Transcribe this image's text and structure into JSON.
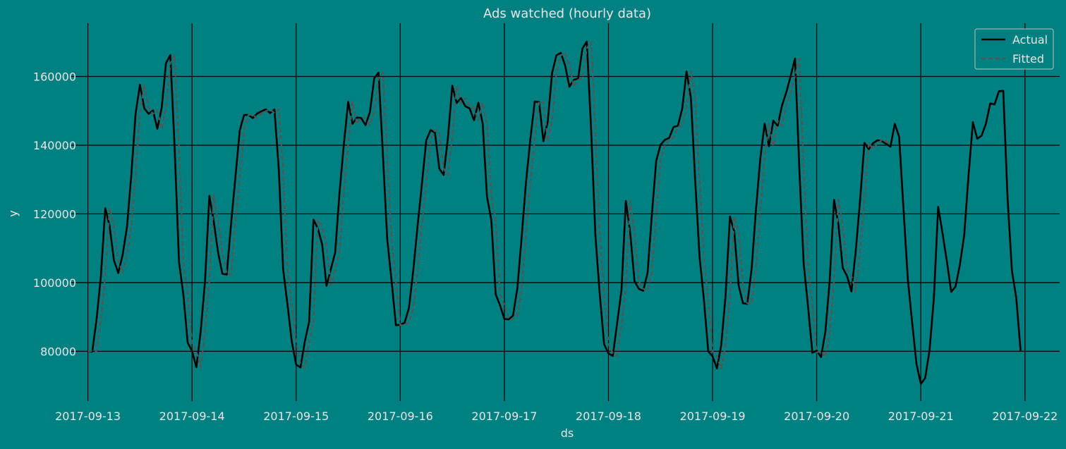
{
  "colors": {
    "background": "#008080",
    "grid": "#000000",
    "text": "#e6e6e6",
    "actual_line": "#000000",
    "fitted_line": "#555555",
    "legend_border": "#b8c4c4"
  },
  "chart_data": {
    "type": "line",
    "title": "Ads watched (hourly data)",
    "xlabel": "ds",
    "ylabel": "y",
    "x_start": "2017-09-13 00:00",
    "x_step": "1 hour",
    "xlim": [
      "2017-09-12 20:00",
      "2017-09-22 08:00"
    ],
    "ylim": [
      65500,
      175500
    ],
    "xticks": [
      "2017-09-13",
      "2017-09-14",
      "2017-09-15",
      "2017-09-16",
      "2017-09-17",
      "2017-09-18",
      "2017-09-19",
      "2017-09-20",
      "2017-09-21",
      "2017-09-22"
    ],
    "yticks": [
      80000,
      100000,
      120000,
      140000,
      160000
    ],
    "grid": true,
    "legend_position": "top-right",
    "series": [
      {
        "name": "Actual",
        "style": "solid",
        "values": [
          80115,
          79885,
          89325,
          101930,
          121630,
          116475,
          106495,
          102795,
          108035,
          116115,
          131235,
          149285,
          157590,
          150715,
          149135,
          150135,
          144780,
          150820,
          163880,
          166235,
          139045,
          105990,
          96600,
          82490,
          80125,
          75370,
          85790,
          100425,
          125235,
          117895,
          108840,
          102570,
          102330,
          117135,
          130640,
          144275,
          148795,
          148840,
          147895,
          149180,
          149890,
          150435,
          149355,
          150405,
          133095,
          103970,
          93635,
          82795,
          76130,
          75280,
          82815,
          88640,
          118320,
          115730,
          111110,
          99065,
          103915,
          108720,
          126165,
          140225,
          152610,
          146240,
          148065,
          147880,
          145870,
          149590,
          159465,
          161110,
          137325,
          112595,
          100570,
          87570,
          87695,
          88325,
          92595,
          103480,
          116590,
          128775,
          141430,
          144400,
          143625,
          133175,
          131340,
          142290,
          157290,
          152300,
          153710,
          151330,
          150715,
          147305,
          152360,
          146310,
          124975,
          118150,
          96565,
          93395,
          89420,
          89295,
          90390,
          98370,
          113510,
          129435,
          141880,
          152710,
          152550,
          141165,
          146895,
          161010,
          166175,
          166880,
          163240,
          157015,
          159040,
          159405,
          168155,
          170145,
          144540,
          113465,
          96395,
          82040,
          79380,
          78645,
          88185,
          97840,
          123785,
          114585,
          100415,
          98175,
          97630,
          102730,
          119760,
          135425,
          140115,
          141560,
          142135,
          145315,
          145640,
          150645,
          161475,
          153745,
          129515,
          107455,
          94980,
          79965,
          78530,
          75030,
          81910,
          96360,
          119245,
          114790,
          99200,
          93980,
          93810,
          104045,
          121280,
          136230,
          146285,
          139700,
          147115,
          145655,
          151545,
          155455,
          160175,
          165210,
          133000,
          105460,
          93040,
          79580,
          80210,
          78315,
          85730,
          100765,
          124080,
          116955,
          104280,
          101895,
          97405,
          109245,
          124045,
          140655,
          138840,
          140580,
          141435,
          141165,
          140380,
          139585,
          146250,
          142435,
          121515,
          100995,
          88355,
          76320,
          70520,
          72190,
          80235,
          95320,
          122030,
          114375,
          106255,
          97300,
          98845,
          105140,
          113840,
          131195,
          146705,
          141875,
          142755,
          146220,
          152170,
          151875,
          155705,
          155840,
          124340,
          103440,
          95500,
          80125
        ]
      },
      {
        "name": "Fitted",
        "style": "dashed",
        "values": [
          80115,
          80115,
          79885,
          89325,
          101930,
          121630,
          116475,
          106495,
          102795,
          108035,
          116115,
          131235,
          149285,
          157590,
          150715,
          149135,
          150135,
          144780,
          150820,
          163880,
          166235,
          139045,
          105990,
          96600,
          82490,
          80125,
          75370,
          85790,
          100425,
          125235,
          117895,
          108840,
          102570,
          102330,
          117135,
          130640,
          144275,
          148795,
          148840,
          147895,
          149180,
          149890,
          150435,
          149355,
          150405,
          133095,
          103970,
          93635,
          82795,
          76130,
          75280,
          82815,
          88640,
          118320,
          115730,
          111110,
          99065,
          103915,
          108720,
          126165,
          140225,
          152610,
          146240,
          148065,
          147880,
          145870,
          149590,
          159465,
          161110,
          137325,
          112595,
          100570,
          87570,
          87695,
          88325,
          92595,
          103480,
          116590,
          128775,
          141430,
          144400,
          143625,
          133175,
          131340,
          142290,
          157290,
          152300,
          153710,
          151330,
          150715,
          147305,
          152360,
          146310,
          124975,
          118150,
          96565,
          93395,
          89420,
          89295,
          90390,
          98370,
          113510,
          129435,
          141880,
          152710,
          152550,
          141165,
          146895,
          161010,
          166175,
          166880,
          163240,
          157015,
          159040,
          159405,
          168155,
          170145,
          144540,
          113465,
          96395,
          82040,
          79380,
          78645,
          88185,
          97840,
          123785,
          114585,
          100415,
          98175,
          97630,
          102730,
          119760,
          135425,
          140115,
          141560,
          142135,
          145315,
          145640,
          150645,
          161475,
          153745,
          129515,
          107455,
          94980,
          79965,
          78530,
          75030,
          81910,
          96360,
          119245,
          114790,
          99200,
          93980,
          93810,
          104045,
          121280,
          136230,
          146285,
          139700,
          147115,
          145655,
          151545,
          155455,
          160175,
          165210,
          133000,
          105460,
          93040,
          79580,
          80210,
          78315,
          85730,
          100765,
          124080,
          116955,
          104280,
          101895,
          97405,
          109245,
          124045,
          140655,
          138840,
          140580,
          141435,
          141165,
          140380
        ]
      }
    ]
  }
}
